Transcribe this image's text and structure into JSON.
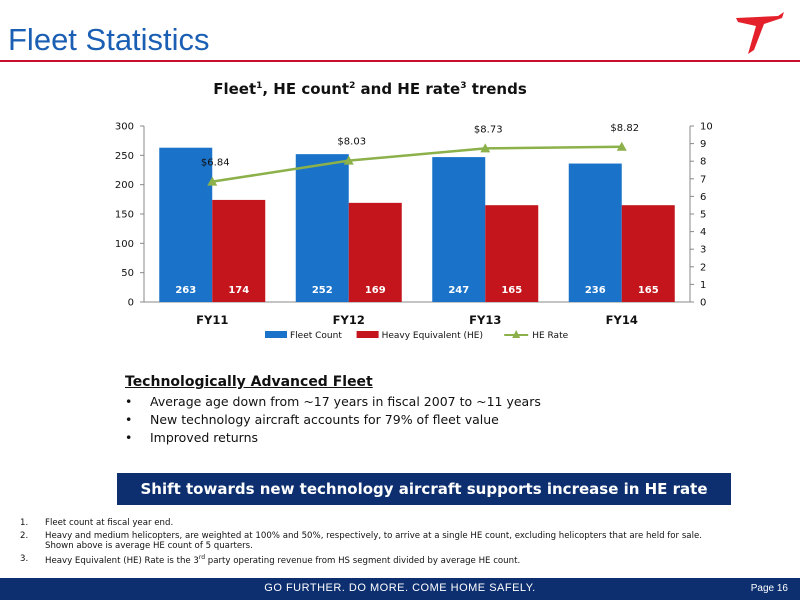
{
  "slide": {
    "title": "Fleet Statistics"
  },
  "logo": {
    "icon": "bird-logo-icon",
    "color": "#e4202b"
  },
  "chart_data": {
    "type": "bar",
    "title_parts": {
      "t1": "Fleet",
      "s1": "1",
      "t2": ", HE count",
      "s2": "2",
      "t3": " and HE rate",
      "s3": "3",
      "t4": " trends"
    },
    "categories": [
      "FY11",
      "FY12",
      "FY13",
      "FY14"
    ],
    "series": [
      {
        "name": "Fleet Count",
        "type": "bar",
        "axis": "left",
        "color": "#1a73c9",
        "values": [
          263,
          252,
          247,
          236
        ],
        "labels": [
          "263",
          "252",
          "247",
          "236"
        ]
      },
      {
        "name": "Heavy Equivalent (HE)",
        "type": "bar",
        "axis": "left",
        "color": "#c4151c",
        "values": [
          174,
          169,
          165,
          165
        ],
        "labels": [
          "174",
          "169",
          "165",
          "165"
        ]
      },
      {
        "name": "HE Rate",
        "type": "line",
        "axis": "right",
        "color": "#8cb04a",
        "values": [
          6.84,
          8.03,
          8.73,
          8.82
        ],
        "labels": [
          "$6.84",
          "$8.03",
          "$8.73",
          "$8.82"
        ]
      }
    ],
    "y_left": {
      "min": 0,
      "max": 300,
      "step": 50
    },
    "y_right": {
      "min": 0,
      "max": 10,
      "step": 1
    },
    "grid": false,
    "legend_position": "bottom"
  },
  "bullets": {
    "heading": "Technologically Advanced Fleet",
    "items": [
      "Average age down from ~17 years in fiscal 2007 to ~11 years",
      "New technology aircraft accounts for 79% of fleet value",
      "Improved returns"
    ],
    "marker": "•"
  },
  "banner": {
    "text": "Shift towards new technology aircraft supports increase in HE rate"
  },
  "footnotes": [
    {
      "num": "1.",
      "text": "Fleet count at fiscal year end."
    },
    {
      "num": "2.",
      "line1": "Heavy and medium helicopters, are weighted at 100% and 50%, respectively, to arrive at a single HE count, excluding helicopters that are  held for sale.",
      "line2": "Shown above is average HE count of 5 quarters."
    },
    {
      "num": "3.",
      "pre": "Heavy Equivalent (HE) Rate is the 3",
      "sup": "rd",
      "post": " party operating revenue from HS segment divided by average HE count."
    }
  ],
  "footer": {
    "tagline": "GO FURTHER. DO MORE. COME HOME SAFELY.",
    "page": "Page 16"
  }
}
